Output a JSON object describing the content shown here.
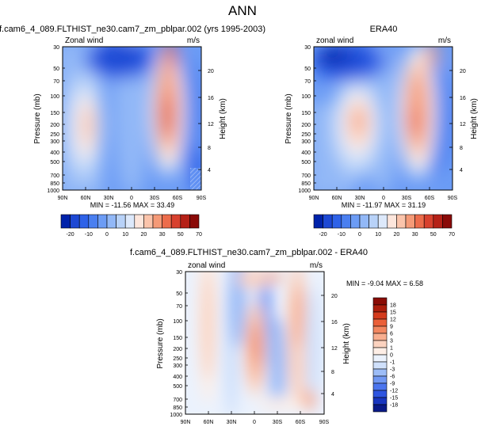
{
  "figure": {
    "title": "ANN"
  },
  "colorbar_levels": {
    "full": [
      "-20",
      "-10",
      "0",
      "10",
      "20",
      "30",
      "50",
      "70"
    ],
    "diff": [
      "18",
      "15",
      "12",
      "9",
      "6",
      "3",
      "1",
      "0",
      "-1",
      "-3",
      "-6",
      "-9",
      "-12",
      "-15",
      "-18"
    ]
  },
  "colors": {
    "full_bins": [
      "#0022aa",
      "#1d48d4",
      "#2e62e8",
      "#4a7ff0",
      "#6c9cf5",
      "#92b8f7",
      "#b8d2f8",
      "#dde9fb",
      "#fde6dc",
      "#fbc4ab",
      "#f59a77",
      "#ec6c4b",
      "#d8412e",
      "#b52117",
      "#8a0a08"
    ],
    "diff_bins": [
      "#0a1a88",
      "#1936bf",
      "#2e55e0",
      "#4b75ee",
      "#7198f3",
      "#9dbdf7",
      "#cfe0fb",
      "#ebf2fd",
      "#fdeee6",
      "#fbd2bf",
      "#f8ae8f",
      "#f28760",
      "#ea6039",
      "#d43b1c",
      "#ac1e0c",
      "#8a0c05"
    ]
  },
  "chart_data": [
    {
      "type": "heatmap",
      "title": "f.cam6_4_089.FLTHIST_ne30.cam7_zm_pblpar.002 (yrs 1995-2003)",
      "left_label": "Zonal wind",
      "units": "m/s",
      "ylabel": "Pressure (mb)",
      "y2label": "Height (km)",
      "x_ticks": [
        "90N",
        "60N",
        "30N",
        "0",
        "30S",
        "60S",
        "90S"
      ],
      "y_ticks": [
        "30",
        "50",
        "70",
        "100",
        "150",
        "200",
        "250",
        "300",
        "400",
        "500",
        "700",
        "850",
        "1000"
      ],
      "y2_ticks": [
        "20",
        "16",
        "12",
        "8",
        "4"
      ],
      "min_value": -11.56,
      "max_value": 33.49,
      "stats_text": "MIN = -11.56   MAX = 33.49"
    },
    {
      "type": "heatmap",
      "title": "ERA40",
      "left_label": "zonal wind",
      "units": "m/s",
      "ylabel": "Pressure (mb)",
      "y2label": "Height (km)",
      "x_ticks": [
        "90N",
        "60N",
        "30N",
        "0",
        "30S",
        "60S",
        "90S"
      ],
      "y_ticks": [
        "30",
        "50",
        "70",
        "100",
        "150",
        "200",
        "250",
        "300",
        "400",
        "500",
        "700",
        "850",
        "1000"
      ],
      "y2_ticks": [
        "20",
        "16",
        "12",
        "8",
        "4"
      ],
      "min_value": -11.97,
      "max_value": 31.19,
      "stats_text": "MIN = -11.97   MAX = 31.19"
    },
    {
      "type": "heatmap",
      "title": "f.cam6_4_089.FLTHIST_ne30.cam7_zm_pblpar.002 - ERA40",
      "left_label": "zonal wind",
      "units": "m/s",
      "ylabel": "Pressure (mb)",
      "y2label": "Height (km)",
      "x_ticks": [
        "90N",
        "60N",
        "30N",
        "0",
        "30S",
        "60S",
        "90S"
      ],
      "y_ticks": [
        "30",
        "50",
        "70",
        "100",
        "150",
        "200",
        "250",
        "300",
        "400",
        "500",
        "700",
        "850",
        "1000"
      ],
      "y2_ticks": [
        "20",
        "16",
        "12",
        "8",
        "4"
      ],
      "min_value": -9.04,
      "max_value": 6.58,
      "stats_text": "MIN = -9.04   MAX =   6.58"
    }
  ]
}
